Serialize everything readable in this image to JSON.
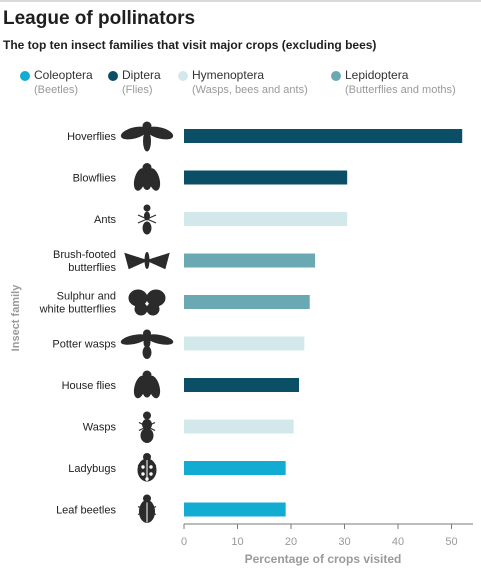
{
  "header": {
    "title": "League of pollinators",
    "subtitle": "The top ten insect families that visit major crops (excluding bees)"
  },
  "legend": [
    {
      "name": "Coleoptera",
      "sub": "(Beetles)",
      "color": "#12acd3"
    },
    {
      "name": "Diptera",
      "sub": "(Flies)",
      "color": "#0b4f66"
    },
    {
      "name": "Hymenoptera",
      "sub": "(Wasps, bees and ants)",
      "color": "#d3e8ea"
    },
    {
      "name": "Lepidoptera",
      "sub": "(Butterflies and moths)",
      "color": "#6aa9b3"
    }
  ],
  "chart_data": {
    "type": "bar",
    "orientation": "horizontal",
    "title": "League of pollinators",
    "subtitle": "The top ten insect families that visit major crops (excluding bees)",
    "xlabel": "Percentage of crops visited",
    "ylabel": "Insect family",
    "xlim": [
      0,
      53
    ],
    "xticks": [
      0,
      10,
      20,
      30,
      40,
      50
    ],
    "grid": false,
    "legend_position": "top",
    "categories": [
      {
        "label": [
          "Hoverflies"
        ],
        "value": 52,
        "order": "Diptera",
        "icon": "hoverfly-icon"
      },
      {
        "label": [
          "Blowflies"
        ],
        "value": 30.5,
        "order": "Diptera",
        "icon": "blowfly-icon"
      },
      {
        "label": [
          "Ants"
        ],
        "value": 30.5,
        "order": "Hymenoptera",
        "icon": "ant-icon"
      },
      {
        "label": [
          "Brush-footed",
          "butterflies"
        ],
        "value": 24.5,
        "order": "Lepidoptera",
        "icon": "brush-footed-butterfly-icon"
      },
      {
        "label": [
          "Sulphur and",
          "white butterflies"
        ],
        "value": 23.5,
        "order": "Lepidoptera",
        "icon": "sulphur-butterfly-icon"
      },
      {
        "label": [
          "Potter wasps"
        ],
        "value": 22.5,
        "order": "Hymenoptera",
        "icon": "potter-wasp-icon"
      },
      {
        "label": [
          "House flies"
        ],
        "value": 21.5,
        "order": "Diptera",
        "icon": "house-fly-icon"
      },
      {
        "label": [
          "Wasps"
        ],
        "value": 20.5,
        "order": "Hymenoptera",
        "icon": "wasp-icon"
      },
      {
        "label": [
          "Ladybugs"
        ],
        "value": 19,
        "order": "Coleoptera",
        "icon": "ladybug-icon"
      },
      {
        "label": [
          "Leaf beetles"
        ],
        "value": 19,
        "order": "Coleoptera",
        "icon": "leaf-beetle-icon"
      }
    ]
  }
}
